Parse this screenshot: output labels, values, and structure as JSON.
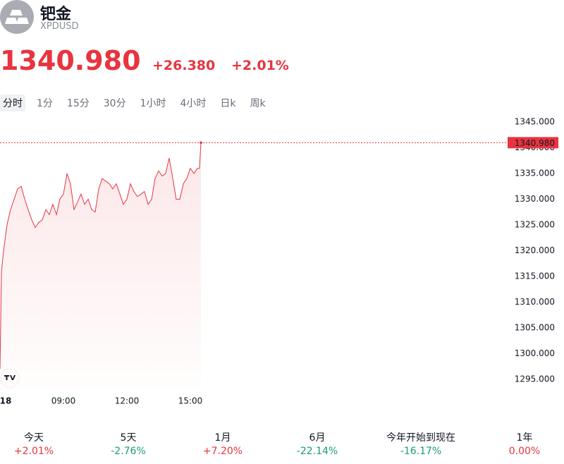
{
  "header": {
    "name": "钯金",
    "symbol": "XPDUSD",
    "price": "1340.980",
    "change": "+26.380",
    "change_percent": "+2.01%"
  },
  "tabs": {
    "items": [
      "分时",
      "1分",
      "15分",
      "30分",
      "1小时",
      "4小时",
      "日k",
      "周k"
    ],
    "selected": 0
  },
  "chart_data": {
    "type": "line",
    "x": [
      6,
      6.07,
      6.17,
      6.33,
      6.5,
      6.67,
      6.83,
      7,
      7.17,
      7.33,
      7.5,
      7.67,
      7.83,
      8,
      8.17,
      8.33,
      8.5,
      8.67,
      8.83,
      9,
      9.17,
      9.33,
      9.5,
      9.67,
      9.83,
      10,
      10.17,
      10.33,
      10.5,
      10.67,
      10.83,
      11,
      11.17,
      11.33,
      11.5,
      11.67,
      11.83,
      12,
      12.17,
      12.33,
      12.5,
      12.67,
      12.83,
      13,
      13.17,
      13.33,
      13.5,
      13.67,
      13.83,
      14,
      14.17,
      14.33,
      14.5,
      14.67,
      14.83,
      15,
      15.17,
      15.33,
      15.43,
      15.5
    ],
    "series": [
      {
        "color": "#e8343f",
        "values": [
          1297,
          1316,
          1320,
          1325,
          1328,
          1330,
          1332,
          1332.5,
          1330,
          1328,
          1326,
          1324.5,
          1325.5,
          1326,
          1328,
          1327,
          1329,
          1327,
          1330,
          1331,
          1335,
          1333,
          1328,
          1329.5,
          1331,
          1329,
          1330,
          1328,
          1327.5,
          1332,
          1334,
          1333.5,
          1333,
          1332,
          1333,
          1331,
          1329,
          1330,
          1333,
          1331.5,
          1330.5,
          1331,
          1331.5,
          1329,
          1330,
          1334,
          1335.5,
          1334.5,
          1335,
          1338,
          1334,
          1330,
          1330,
          1333,
          1334,
          1336,
          1335,
          1336,
          1336,
          1340.98
        ]
      }
    ],
    "xlim": [
      6,
      30
    ],
    "xticks": [
      {
        "value": 6,
        "label": "18"
      },
      {
        "value": 9,
        "label": "09:00"
      },
      {
        "value": 12,
        "label": "12:00"
      },
      {
        "value": 15,
        "label": "15:00"
      }
    ],
    "ylim": [
      1293,
      1347
    ],
    "yticks": [
      {
        "value": 1295,
        "label": "1295.000"
      },
      {
        "value": 1300,
        "label": "1300.000"
      },
      {
        "value": 1305,
        "label": "1305.000"
      },
      {
        "value": 1310,
        "label": "1310.000"
      },
      {
        "value": 1315,
        "label": "1315.000"
      },
      {
        "value": 1320,
        "label": "1320.000"
      },
      {
        "value": 1325,
        "label": "1325.000"
      },
      {
        "value": 1330,
        "label": "1330.000"
      },
      {
        "value": 1335,
        "label": "1335.000"
      },
      {
        "value": 1340,
        "label": "1340.000"
      },
      {
        "value": 1345,
        "label": "1345.000"
      }
    ]
  },
  "performance": [
    {
      "label": "今天",
      "value": "+2.01%",
      "color": "#e8343f"
    },
    {
      "label": "5天",
      "value": "-2.76%",
      "color": "#1a9c73"
    },
    {
      "label": "1月",
      "value": "+7.20%",
      "color": "#e8343f"
    },
    {
      "label": "6月",
      "value": "-22.14%",
      "color": "#1a9c73"
    },
    {
      "label": "今年开始到现在",
      "value": "-16.17%",
      "color": "#1a9c73"
    },
    {
      "label": "1年",
      "value": "0.00%",
      "color": "#e8343f"
    }
  ]
}
